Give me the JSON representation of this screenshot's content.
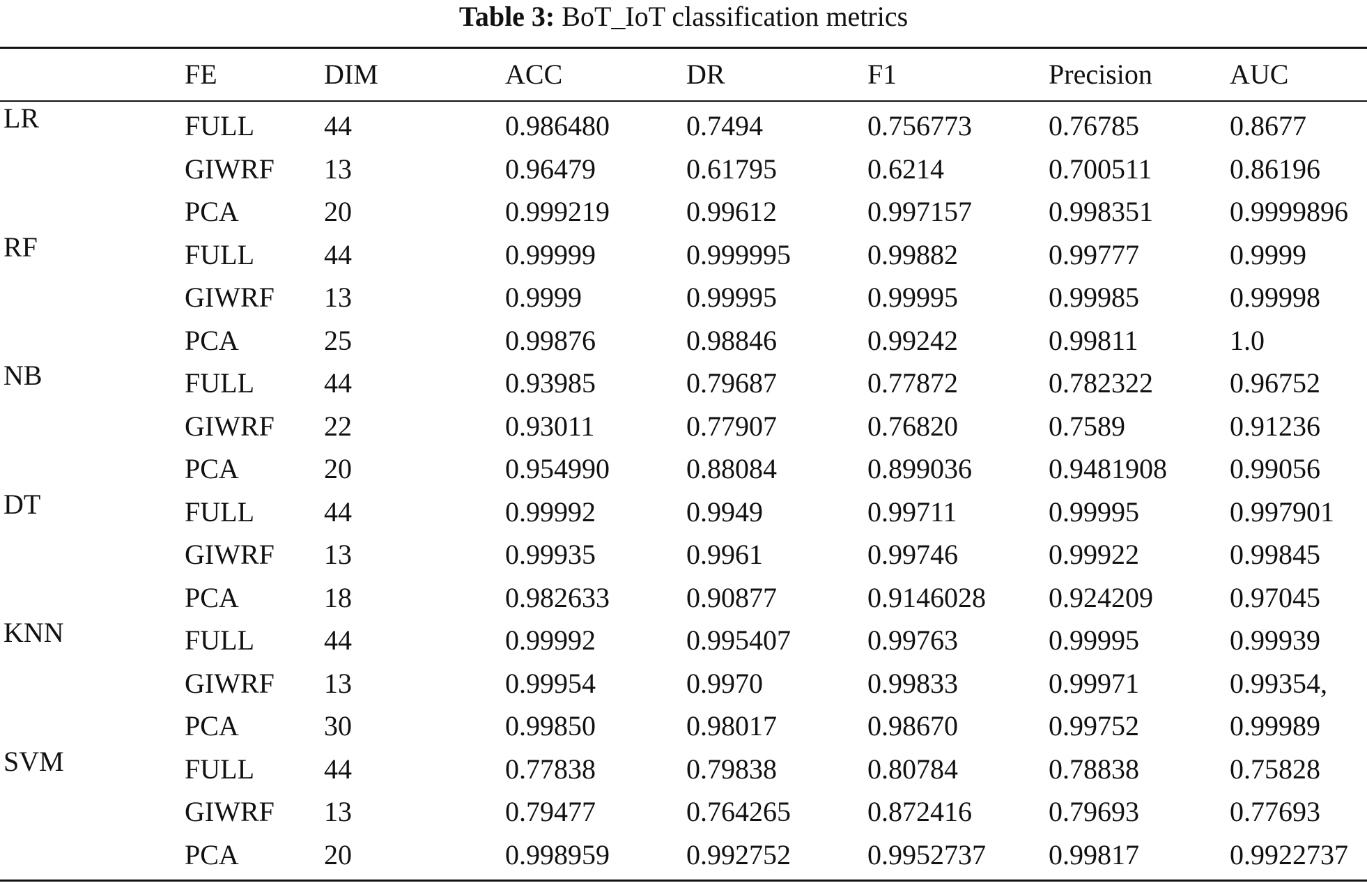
{
  "caption": {
    "label": "Table 3:",
    "text": "BoT_IoT classification metrics"
  },
  "headers": [
    "",
    "FE",
    "DIM",
    "ACC",
    "DR",
    "F1",
    "Precision",
    "AUC"
  ],
  "groups": [
    {
      "model": "LR",
      "rows": [
        {
          "fe": "FULL",
          "dim": "44",
          "acc": "0.986480",
          "dr": "0.7494",
          "f1": "0.756773",
          "precision": "0.76785",
          "auc": "0.8677"
        },
        {
          "fe": "GIWRF",
          "dim": "13",
          "acc": "0.96479",
          "dr": "0.61795",
          "f1": "0.6214",
          "precision": "0.700511",
          "auc": "0.86196"
        },
        {
          "fe": "PCA",
          "dim": "20",
          "acc": "0.999219",
          "dr": "0.99612",
          "f1": "0.997157",
          "precision": "0.998351",
          "auc": "0.9999896"
        }
      ]
    },
    {
      "model": "RF",
      "rows": [
        {
          "fe": "FULL",
          "dim": "44",
          "acc": "0.99999",
          "dr": "0.999995",
          "f1": "0.99882",
          "precision": "0.99777",
          "auc": "0.9999"
        },
        {
          "fe": "GIWRF",
          "dim": "13",
          "acc": "0.9999",
          "dr": "0.99995",
          "f1": "0.99995",
          "precision": "0.99985",
          "auc": "0.99998"
        },
        {
          "fe": "PCA",
          "dim": "25",
          "acc": "0.99876",
          "dr": "0.98846",
          "f1": "0.99242",
          "precision": "0.99811",
          "auc": "1.0"
        }
      ]
    },
    {
      "model": "NB",
      "rows": [
        {
          "fe": "FULL",
          "dim": "44",
          "acc": "0.93985",
          "dr": "0.79687",
          "f1": "0.77872",
          "precision": "0.782322",
          "auc": "0.96752"
        },
        {
          "fe": "GIWRF",
          "dim": "22",
          "acc": "0.93011",
          "dr": "0.77907",
          "f1": "0.76820",
          "precision": "0.7589",
          "auc": "0.91236"
        },
        {
          "fe": "PCA",
          "dim": "20",
          "acc": "0.954990",
          "dr": "0.88084",
          "f1": "0.899036",
          "precision": "0.9481908",
          "auc": "0.99056"
        }
      ]
    },
    {
      "model": "DT",
      "rows": [
        {
          "fe": "FULL",
          "dim": "44",
          "acc": "0.99992",
          "dr": "0.9949",
          "f1": "0.99711",
          "precision": "0.99995",
          "auc": "0.997901"
        },
        {
          "fe": "GIWRF",
          "dim": "13",
          "acc": "0.99935",
          "dr": "0.9961",
          "f1": "0.99746",
          "precision": "0.99922",
          "auc": "0.99845"
        },
        {
          "fe": "PCA",
          "dim": "18",
          "acc": "0.982633",
          "dr": "0.90877",
          "f1": "0.9146028",
          "precision": "0.924209",
          "auc": "0.97045"
        }
      ]
    },
    {
      "model": "KNN",
      "rows": [
        {
          "fe": "FULL",
          "dim": "44",
          "acc": "0.99992",
          "dr": "0.995407",
          "f1": "0.99763",
          "precision": "0.99995",
          "auc": "0.99939"
        },
        {
          "fe": "GIWRF",
          "dim": "13",
          "acc": "0.99954",
          "dr": "0.9970",
          "f1": "0.99833",
          "precision": "0.99971",
          "auc": "0.99354,"
        },
        {
          "fe": "PCA",
          "dim": "30",
          "acc": "0.99850",
          "dr": "0.98017",
          "f1": "0.98670",
          "precision": "0.99752",
          "auc": "0.99989"
        }
      ]
    },
    {
      "model": "SVM",
      "rows": [
        {
          "fe": "FULL",
          "dim": "44",
          "acc": "0.77838",
          "dr": "0.79838",
          "f1": "0.80784",
          "precision": "0.78838",
          "auc": "0.75828"
        },
        {
          "fe": "GIWRF",
          "dim": "13",
          "acc": "0.79477",
          "dr": "0.764265",
          "f1": "0.872416",
          "precision": "0.79693",
          "auc": "0.77693"
        },
        {
          "fe": "PCA",
          "dim": "20",
          "acc": "0.998959",
          "dr": "0.992752",
          "f1": "0.9952737",
          "precision": "0.99817",
          "auc": "0.9922737"
        }
      ]
    }
  ]
}
